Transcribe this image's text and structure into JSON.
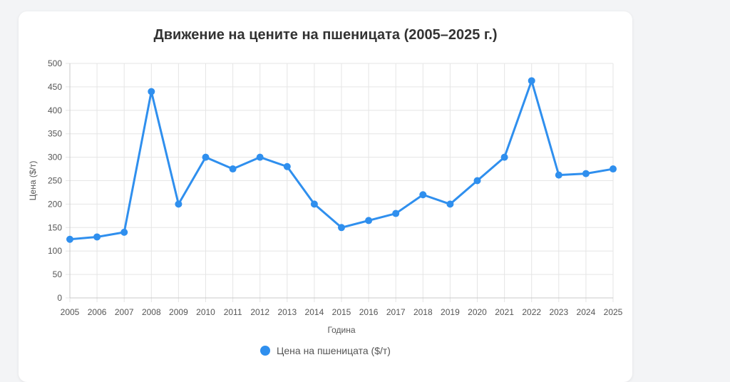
{
  "colors": {
    "series": "#2f8fee",
    "grid": "#e5e5e5",
    "axis": "#c8c8c8"
  },
  "chart_data": {
    "type": "line",
    "title": "Движение на цените на пшеницата (2005–2025 г.)",
    "xlabel": "Година",
    "ylabel": "Цена ($/т)",
    "categories": [
      "2005",
      "2006",
      "2007",
      "2008",
      "2009",
      "2010",
      "2011",
      "2012",
      "2013",
      "2014",
      "2015",
      "2016",
      "2017",
      "2018",
      "2019",
      "2020",
      "2021",
      "2022",
      "2023",
      "2024",
      "2025"
    ],
    "series": [
      {
        "name": "Цена на пшеницата ($/т)",
        "values": [
          125,
          130,
          140,
          440,
          200,
          300,
          275,
          300,
          280,
          200,
          150,
          165,
          180,
          220,
          200,
          250,
          300,
          463,
          262,
          265,
          275
        ]
      }
    ],
    "ylim": [
      0,
      500
    ],
    "yticks": [
      0,
      50,
      100,
      150,
      200,
      250,
      300,
      350,
      400,
      450,
      500
    ],
    "grid": true,
    "legend": "bottom"
  }
}
